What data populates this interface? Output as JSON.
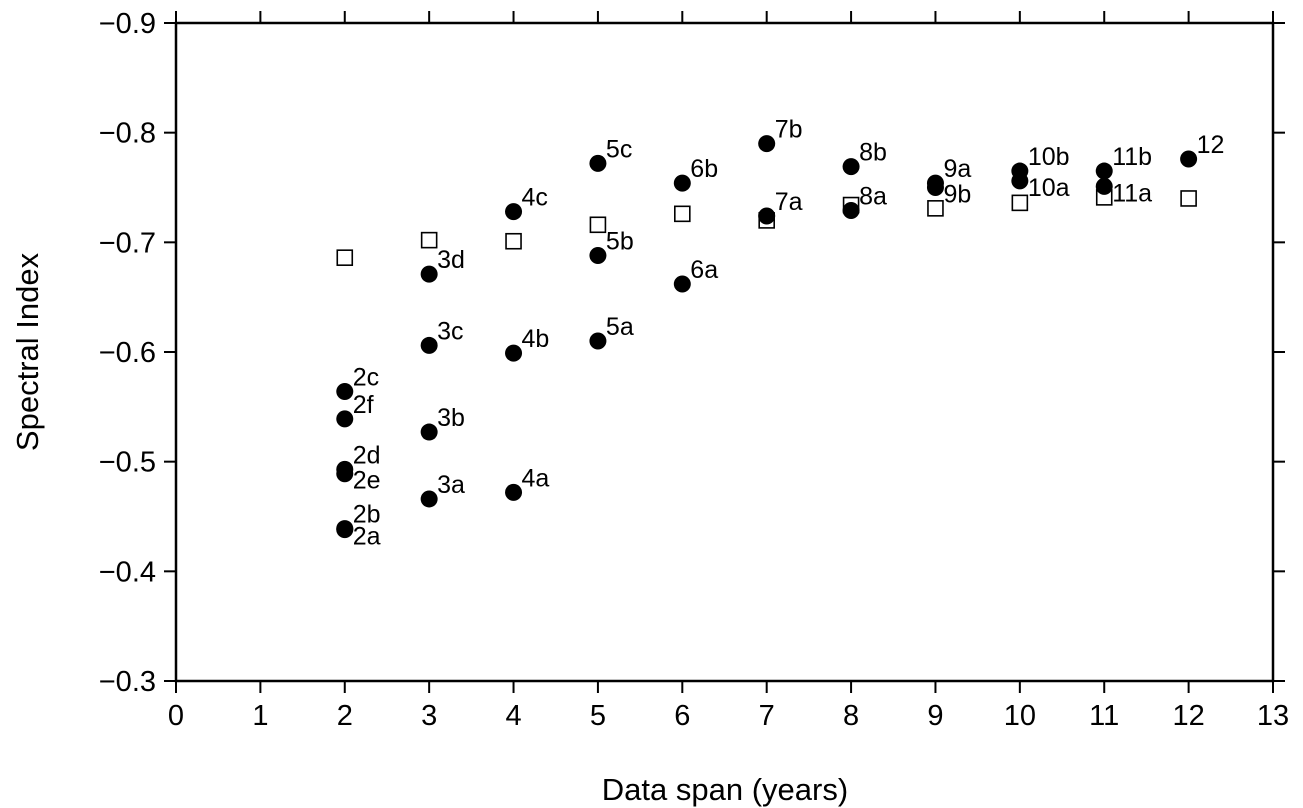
{
  "chart_data": {
    "type": "scatter",
    "xlabel": "Data span (years)",
    "ylabel": "Spectral Index",
    "xlim": [
      0,
      13
    ],
    "ylim": [
      -0.3,
      -0.9
    ],
    "y_axis_inverted": true,
    "grid": false,
    "x_ticks": [
      {
        "value": 0,
        "label": "0"
      },
      {
        "value": 1,
        "label": "1"
      },
      {
        "value": 2,
        "label": "2"
      },
      {
        "value": 3,
        "label": "3"
      },
      {
        "value": 4,
        "label": "4"
      },
      {
        "value": 5,
        "label": "5"
      },
      {
        "value": 6,
        "label": "6"
      },
      {
        "value": 7,
        "label": "7"
      },
      {
        "value": 8,
        "label": "8"
      },
      {
        "value": 9,
        "label": "9"
      },
      {
        "value": 10,
        "label": "10"
      },
      {
        "value": 11,
        "label": "11"
      },
      {
        "value": 12,
        "label": "12"
      },
      {
        "value": 13,
        "label": "13"
      }
    ],
    "y_ticks": [
      {
        "value": -0.9,
        "label": "−0.9"
      },
      {
        "value": -0.8,
        "label": "−0.8"
      },
      {
        "value": -0.7,
        "label": "−0.7"
      },
      {
        "value": -0.6,
        "label": "−0.6"
      },
      {
        "value": -0.5,
        "label": "−0.5"
      },
      {
        "value": -0.4,
        "label": "−0.4"
      },
      {
        "value": -0.3,
        "label": "−0.3"
      }
    ],
    "series": [
      {
        "marker": "filled-circle",
        "color": "#000000",
        "points": [
          {
            "x": 2,
            "y": -0.564,
            "label": "2c"
          },
          {
            "x": 2,
            "y": -0.539,
            "label": "2f"
          },
          {
            "x": 2,
            "y": -0.493,
            "label": "2d"
          },
          {
            "x": 2,
            "y": -0.489,
            "label": "2e"
          },
          {
            "x": 2,
            "y": -0.439,
            "label": "2b"
          },
          {
            "x": 2,
            "y": -0.438,
            "label": "2a"
          },
          {
            "x": 3,
            "y": -0.671,
            "label": "3d"
          },
          {
            "x": 3,
            "y": -0.606,
            "label": "3c"
          },
          {
            "x": 3,
            "y": -0.527,
            "label": "3b"
          },
          {
            "x": 3,
            "y": -0.466,
            "label": "3a"
          },
          {
            "x": 4,
            "y": -0.728,
            "label": "4c"
          },
          {
            "x": 4,
            "y": -0.599,
            "label": "4b"
          },
          {
            "x": 4,
            "y": -0.472,
            "label": "4a"
          },
          {
            "x": 5,
            "y": -0.772,
            "label": "5c"
          },
          {
            "x": 5,
            "y": -0.688,
            "label": "5b"
          },
          {
            "x": 5,
            "y": -0.61,
            "label": "5a"
          },
          {
            "x": 6,
            "y": -0.754,
            "label": "6b"
          },
          {
            "x": 6,
            "y": -0.662,
            "label": "6a"
          },
          {
            "x": 7,
            "y": -0.79,
            "label": "7b"
          },
          {
            "x": 7,
            "y": -0.724,
            "label": "7a"
          },
          {
            "x": 8,
            "y": -0.769,
            "label": "8b"
          },
          {
            "x": 8,
            "y": -0.729,
            "label": "8a"
          },
          {
            "x": 9,
            "y": -0.754,
            "label": "9a"
          },
          {
            "x": 9,
            "y": -0.75,
            "label": "9b"
          },
          {
            "x": 10,
            "y": -0.765,
            "label": "10b"
          },
          {
            "x": 10,
            "y": -0.756,
            "label": "10a"
          },
          {
            "x": 11,
            "y": -0.765,
            "label": "11b"
          },
          {
            "x": 11,
            "y": -0.751,
            "label": "11a"
          },
          {
            "x": 12,
            "y": -0.776,
            "label": "12"
          }
        ]
      },
      {
        "marker": "open-square",
        "color": "#000000",
        "points": [
          {
            "x": 2,
            "y": -0.686
          },
          {
            "x": 3,
            "y": -0.702
          },
          {
            "x": 4,
            "y": -0.701
          },
          {
            "x": 5,
            "y": -0.716
          },
          {
            "x": 6,
            "y": -0.726
          },
          {
            "x": 7,
            "y": -0.72
          },
          {
            "x": 8,
            "y": -0.734
          },
          {
            "x": 9,
            "y": -0.731
          },
          {
            "x": 10,
            "y": -0.736
          },
          {
            "x": 11,
            "y": -0.741
          },
          {
            "x": 12,
            "y": -0.74
          }
        ]
      }
    ]
  }
}
